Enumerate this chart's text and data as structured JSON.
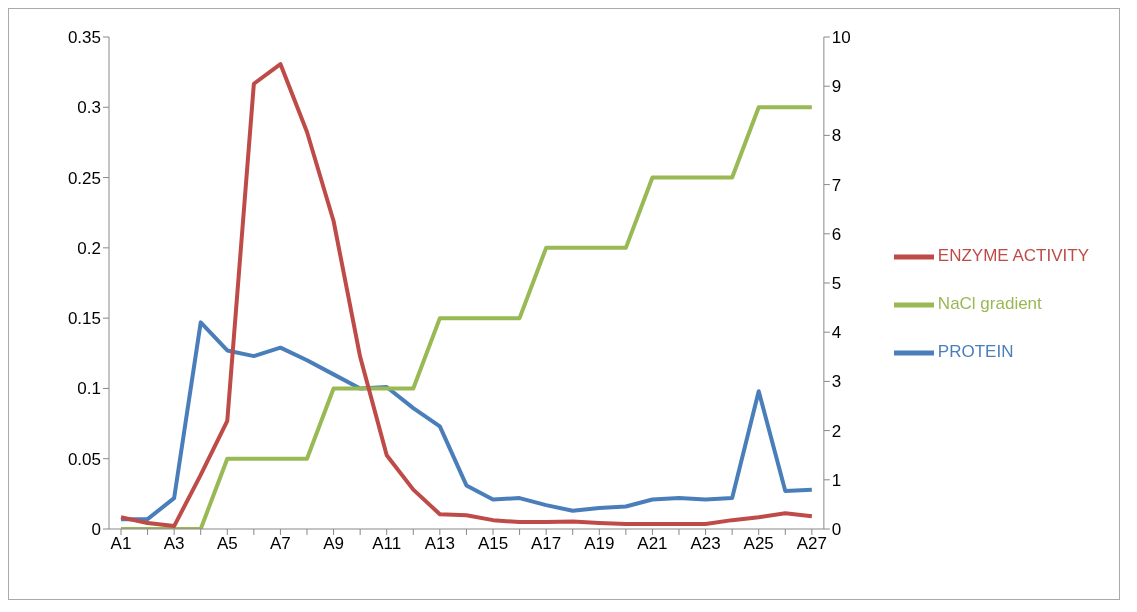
{
  "chart_data": {
    "type": "line",
    "categories": [
      "A1",
      null,
      "A3",
      null,
      "A5",
      null,
      "A7",
      null,
      "A9",
      null,
      "A11",
      null,
      "A13",
      null,
      "A15",
      null,
      "A17",
      null,
      "A19",
      null,
      "A21",
      null,
      "A23",
      null,
      "A25",
      null,
      "A27"
    ],
    "series": [
      {
        "name": "PROTEIN",
        "color": "#4a7ebb",
        "values": [
          0.007,
          0.007,
          0.022,
          0.147,
          0.127,
          0.123,
          0.129,
          0.12,
          0.11,
          0.1,
          0.101,
          0.086,
          0.073,
          0.031,
          0.021,
          0.022,
          0.017,
          0.013,
          0.015,
          0.016,
          0.021,
          0.022,
          0.021,
          0.022,
          0.098,
          0.027,
          0.028
        ]
      },
      {
        "name": "NaCl gradient",
        "color": "#98b954",
        "values": [
          0,
          0,
          0,
          0,
          0.05,
          0.05,
          0.05,
          0.05,
          0.1,
          0.1,
          0.1,
          0.1,
          0.15,
          0.15,
          0.15,
          0.15,
          0.2,
          0.2,
          0.2,
          0.2,
          0.25,
          0.25,
          0.25,
          0.25,
          0.3,
          0.3,
          0.3
        ]
      },
      {
        "name": "ENZYME ACTIVITY",
        "color": "#be4b48",
        "axis": "y2",
        "values": [
          0.24,
          0.12,
          0.06,
          1.1,
          2.2,
          9.05,
          9.45,
          8.07,
          6.26,
          3.5,
          1.5,
          0.8,
          0.3,
          0.28,
          0.18,
          0.14,
          0.14,
          0.15,
          0.12,
          0.1,
          0.1,
          0.1,
          0.1,
          0.18,
          0.24,
          0.32,
          0.26
        ]
      }
    ],
    "ylim": [
      0,
      0.35
    ],
    "yticks": [
      0,
      0.05,
      0.1,
      0.15,
      0.2,
      0.25,
      0.3,
      0.35
    ],
    "y2lim": [
      0,
      10
    ],
    "y2ticks": [
      0,
      1,
      2,
      3,
      4,
      5,
      6,
      7,
      8,
      9,
      10
    ],
    "grid": false,
    "legend": "right",
    "marker": "none",
    "line_style": "solid"
  }
}
